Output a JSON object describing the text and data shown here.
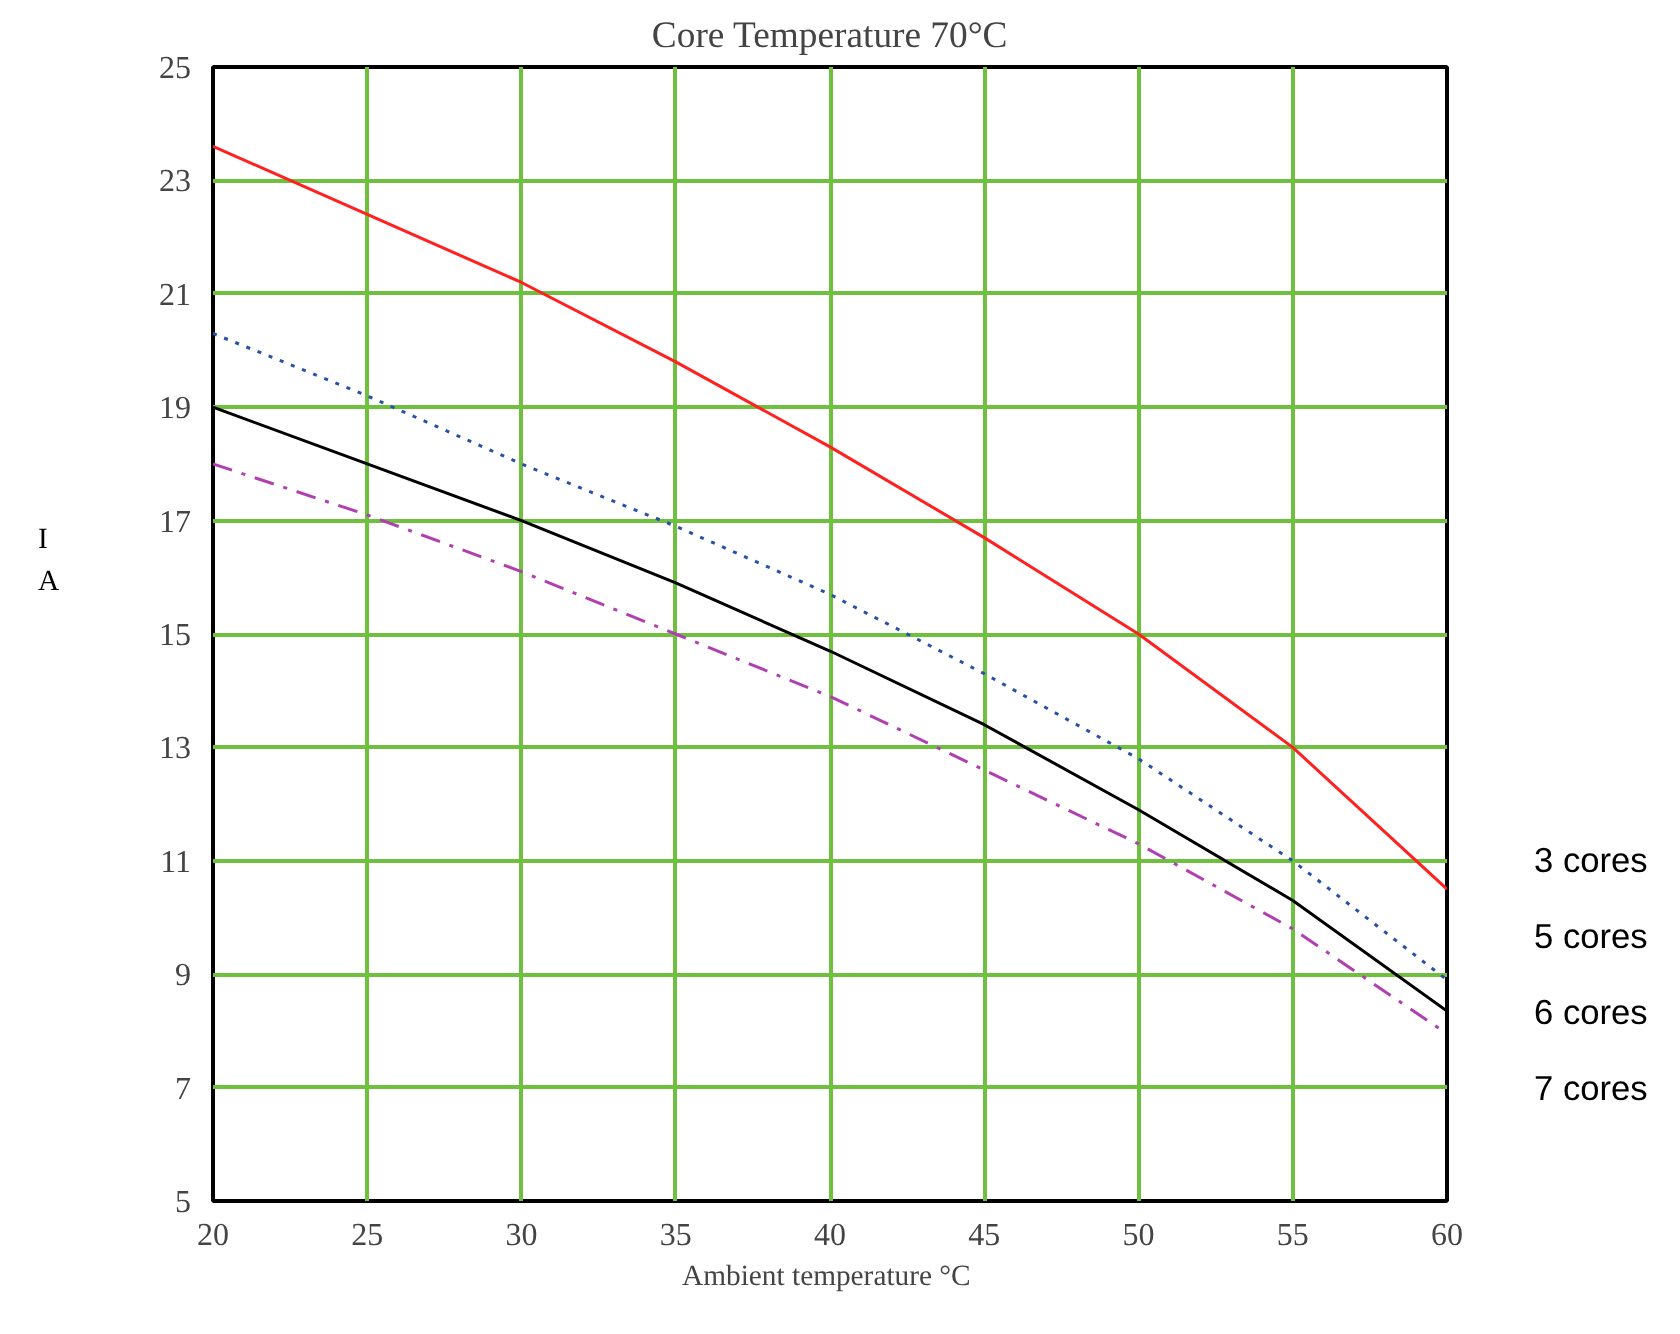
{
  "chart_data": {
    "type": "line",
    "title": "Core Temperature 70°C",
    "xlabel": "Ambient temperature  °C",
    "ylabel": "I\nA",
    "x": [
      20,
      25,
      30,
      35,
      40,
      45,
      50,
      55,
      60
    ],
    "series": [
      {
        "color": "#ff2020",
        "line_style": "solid",
        "values": [
          23.6,
          22.4,
          21.2,
          19.8,
          18.3,
          16.7,
          15.0,
          13.0,
          10.5
        ]
      },
      {
        "color": "#2850a8",
        "line_style": "dotted",
        "values": [
          20.3,
          19.2,
          18.0,
          16.9,
          15.7,
          14.3,
          12.8,
          11.0,
          8.9
        ]
      },
      {
        "color": "#000000",
        "line_style": "solid",
        "values": [
          19.0,
          18.0,
          17.0,
          15.9,
          14.7,
          13.4,
          11.9,
          10.3,
          8.35
        ]
      },
      {
        "color": "#b040b0",
        "line_style": "dashdot",
        "values": [
          18.0,
          17.1,
          16.1,
          15.0,
          13.9,
          12.6,
          11.3,
          9.8,
          7.95
        ]
      }
    ],
    "annotations": [
      "3 cores",
      "5 cores",
      "6 cores",
      "7 cores"
    ],
    "xlim": [
      20,
      60
    ],
    "ylim": [
      5,
      25
    ],
    "xticks": [
      20,
      25,
      30,
      35,
      40,
      45,
      50,
      55,
      60
    ],
    "yticks": [
      5,
      7,
      9,
      11,
      13,
      15,
      17,
      19,
      21,
      23,
      25
    ],
    "grid": true
  }
}
